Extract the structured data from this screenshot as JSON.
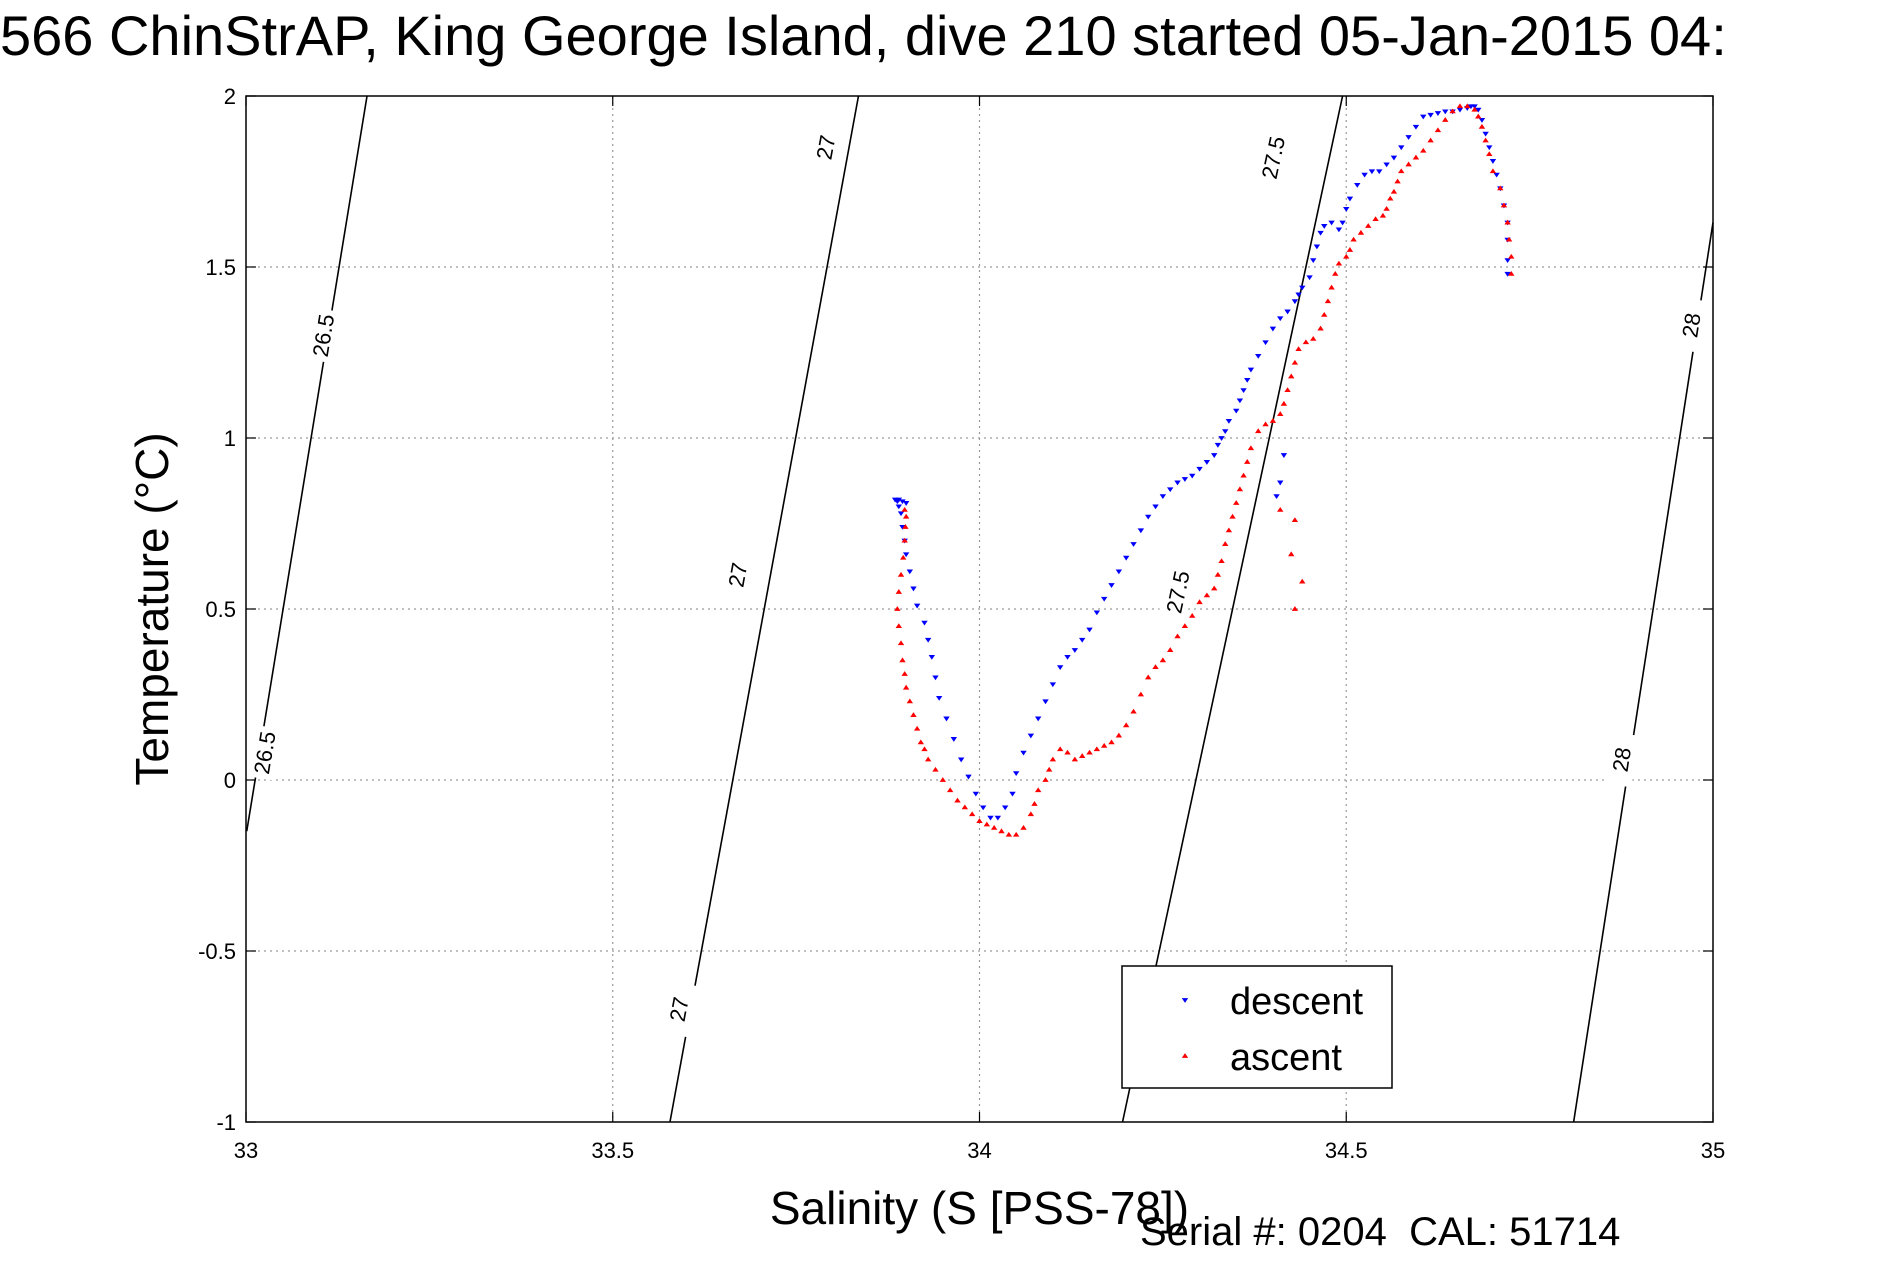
{
  "title": "566 ChinStrAP, King George Island, dive 210 started 05-Jan-2015 04:",
  "footer": "Serial #: 0204  CAL: 51714",
  "chart_data": {
    "type": "scatter",
    "title": "566 ChinStrAP, King George Island, dive 210 started 05-Jan-2015 04:",
    "xlabel": "Salinity (S [PSS-78])",
    "ylabel": "Temperature (°C)",
    "xlim": [
      33,
      35
    ],
    "ylim": [
      -1,
      2
    ],
    "xticks": [
      33,
      33.5,
      34,
      34.5,
      35
    ],
    "yticks": [
      -1,
      -0.5,
      0,
      0.5,
      1,
      1.5,
      2
    ],
    "xtick_labels": [
      "33",
      "33.5",
      "34",
      "34.5",
      "35"
    ],
    "ytick_labels": [
      "-1",
      "-0.5",
      "0",
      "0.5",
      "1",
      "1.5",
      "2"
    ],
    "grid": true,
    "legend_position": "bottom-right",
    "colors": {
      "descent": "#0000ff",
      "ascent": "#ff0000",
      "contour": "#000000",
      "grid": "#9a9a9a"
    },
    "density_contours": [
      {
        "label": "26.5",
        "points": [
          [
            33.001,
            -0.15
          ],
          [
            33.165,
            2.0
          ]
        ],
        "label_positions": [
          [
            33.025,
            0.08
          ],
          [
            33.105,
            1.3
          ]
        ]
      },
      {
        "label": "27",
        "points": [
          [
            33.578,
            -1.0
          ],
          [
            33.835,
            2.0
          ]
        ],
        "label_positions": [
          [
            33.59,
            -0.67
          ],
          [
            33.67,
            0.6
          ],
          [
            33.79,
            1.85
          ]
        ]
      },
      {
        "label": "27.5",
        "points": [
          [
            34.195,
            -1.0
          ],
          [
            34.495,
            2.0
          ]
        ],
        "label_positions": [
          [
            34.27,
            0.55
          ],
          [
            34.4,
            1.82
          ]
        ]
      },
      {
        "label": "28",
        "points": [
          [
            34.81,
            -1.0
          ],
          [
            35.0,
            1.63
          ]
        ],
        "label_positions": [
          [
            34.875,
            0.06
          ],
          [
            34.97,
            1.33
          ]
        ]
      }
    ],
    "series": [
      {
        "name": "descent",
        "marker": "triangle-down",
        "points": [
          [
            34.72,
            1.48
          ],
          [
            34.72,
            1.52
          ],
          [
            34.72,
            1.58
          ],
          [
            34.72,
            1.63
          ],
          [
            34.715,
            1.68
          ],
          [
            34.71,
            1.73
          ],
          [
            34.705,
            1.77
          ],
          [
            34.7,
            1.81
          ],
          [
            34.695,
            1.85
          ],
          [
            34.69,
            1.89
          ],
          [
            34.685,
            1.93
          ],
          [
            34.68,
            1.96
          ],
          [
            34.675,
            1.97
          ],
          [
            34.67,
            1.97
          ],
          [
            34.665,
            1.965
          ],
          [
            34.655,
            1.96
          ],
          [
            34.645,
            1.955
          ],
          [
            34.635,
            1.955
          ],
          [
            34.625,
            1.95
          ],
          [
            34.615,
            1.945
          ],
          [
            34.605,
            1.94
          ],
          [
            34.595,
            1.91
          ],
          [
            34.585,
            1.88
          ],
          [
            34.575,
            1.85
          ],
          [
            34.565,
            1.82
          ],
          [
            34.555,
            1.8
          ],
          [
            34.545,
            1.78
          ],
          [
            34.535,
            1.78
          ],
          [
            34.525,
            1.77
          ],
          [
            34.515,
            1.74
          ],
          [
            34.505,
            1.7
          ],
          [
            34.5,
            1.67
          ],
          [
            34.495,
            1.63
          ],
          [
            34.49,
            1.61
          ],
          [
            34.48,
            1.63
          ],
          [
            34.47,
            1.62
          ],
          [
            34.465,
            1.6
          ],
          [
            34.46,
            1.56
          ],
          [
            34.455,
            1.52
          ],
          [
            34.45,
            1.47
          ],
          [
            34.44,
            1.44
          ],
          [
            34.435,
            1.42
          ],
          [
            34.43,
            1.4
          ],
          [
            34.42,
            1.37
          ],
          [
            34.41,
            1.35
          ],
          [
            34.4,
            1.32
          ],
          [
            34.39,
            1.28
          ],
          [
            34.38,
            1.24
          ],
          [
            34.37,
            1.2
          ],
          [
            34.365,
            1.17
          ],
          [
            34.36,
            1.14
          ],
          [
            34.355,
            1.11
          ],
          [
            34.35,
            1.08
          ],
          [
            34.34,
            1.05
          ],
          [
            34.335,
            1.02
          ],
          [
            34.33,
            1.0
          ],
          [
            34.325,
            0.98
          ],
          [
            34.32,
            0.95
          ],
          [
            34.31,
            0.93
          ],
          [
            34.3,
            0.91
          ],
          [
            34.29,
            0.89
          ],
          [
            34.28,
            0.88
          ],
          [
            34.27,
            0.87
          ],
          [
            34.26,
            0.85
          ],
          [
            34.25,
            0.83
          ],
          [
            34.24,
            0.8
          ],
          [
            34.23,
            0.77
          ],
          [
            34.22,
            0.73
          ],
          [
            34.21,
            0.69
          ],
          [
            34.2,
            0.65
          ],
          [
            34.19,
            0.61
          ],
          [
            34.18,
            0.57
          ],
          [
            34.17,
            0.53
          ],
          [
            34.16,
            0.49
          ],
          [
            34.15,
            0.44
          ],
          [
            34.14,
            0.41
          ],
          [
            34.13,
            0.38
          ],
          [
            34.12,
            0.36
          ],
          [
            34.11,
            0.33
          ],
          [
            34.1,
            0.28
          ],
          [
            34.09,
            0.23
          ],
          [
            34.08,
            0.18
          ],
          [
            34.07,
            0.13
          ],
          [
            34.06,
            0.08
          ],
          [
            34.05,
            0.02
          ],
          [
            34.045,
            -0.04
          ],
          [
            34.035,
            -0.08
          ],
          [
            34.025,
            -0.11
          ],
          [
            34.015,
            -0.11
          ],
          [
            34.005,
            -0.08
          ],
          [
            33.995,
            -0.04
          ],
          [
            33.985,
            0.01
          ],
          [
            33.975,
            0.06
          ],
          [
            33.965,
            0.12
          ],
          [
            33.955,
            0.18
          ],
          [
            33.945,
            0.24
          ],
          [
            33.94,
            0.3
          ],
          [
            33.935,
            0.36
          ],
          [
            33.93,
            0.41
          ],
          [
            33.925,
            0.46
          ],
          [
            33.915,
            0.51
          ],
          [
            33.91,
            0.56
          ],
          [
            33.905,
            0.61
          ],
          [
            33.9,
            0.66
          ],
          [
            33.898,
            0.7
          ],
          [
            33.895,
            0.74
          ],
          [
            33.893,
            0.78
          ],
          [
            33.89,
            0.8
          ],
          [
            33.888,
            0.815
          ],
          [
            33.885,
            0.82
          ],
          [
            33.89,
            0.82
          ],
          [
            33.895,
            0.815
          ],
          [
            33.9,
            0.81
          ],
          [
            34.41,
            0.87
          ],
          [
            34.405,
            0.83
          ],
          [
            34.415,
            0.95
          ]
        ]
      },
      {
        "name": "ascent",
        "marker": "triangle-up",
        "points": [
          [
            34.725,
            1.48
          ],
          [
            34.725,
            1.53
          ],
          [
            34.722,
            1.58
          ],
          [
            34.72,
            1.63
          ],
          [
            34.715,
            1.68
          ],
          [
            34.71,
            1.73
          ],
          [
            34.7,
            1.78
          ],
          [
            34.695,
            1.83
          ],
          [
            34.69,
            1.87
          ],
          [
            34.685,
            1.91
          ],
          [
            34.68,
            1.94
          ],
          [
            34.675,
            1.96
          ],
          [
            34.665,
            1.97
          ],
          [
            34.655,
            1.97
          ],
          [
            34.645,
            1.955
          ],
          [
            34.635,
            1.93
          ],
          [
            34.625,
            1.9
          ],
          [
            34.615,
            1.87
          ],
          [
            34.605,
            1.84
          ],
          [
            34.595,
            1.82
          ],
          [
            34.585,
            1.8
          ],
          [
            34.575,
            1.78
          ],
          [
            34.57,
            1.75
          ],
          [
            34.565,
            1.72
          ],
          [
            34.56,
            1.7
          ],
          [
            34.555,
            1.67
          ],
          [
            34.55,
            1.65
          ],
          [
            34.54,
            1.64
          ],
          [
            34.53,
            1.62
          ],
          [
            34.52,
            1.6
          ],
          [
            34.51,
            1.58
          ],
          [
            34.505,
            1.55
          ],
          [
            34.5,
            1.53
          ],
          [
            34.49,
            1.51
          ],
          [
            34.485,
            1.48
          ],
          [
            34.48,
            1.44
          ],
          [
            34.475,
            1.4
          ],
          [
            34.47,
            1.36
          ],
          [
            34.465,
            1.32
          ],
          [
            34.455,
            1.29
          ],
          [
            34.445,
            1.28
          ],
          [
            34.435,
            1.26
          ],
          [
            34.43,
            1.22
          ],
          [
            34.425,
            1.18
          ],
          [
            34.42,
            1.14
          ],
          [
            34.415,
            1.1
          ],
          [
            34.41,
            1.07
          ],
          [
            34.4,
            1.05
          ],
          [
            34.39,
            1.04
          ],
          [
            34.38,
            1.02
          ],
          [
            34.37,
            0.97
          ],
          [
            34.365,
            0.93
          ],
          [
            34.36,
            0.89
          ],
          [
            34.355,
            0.85
          ],
          [
            34.35,
            0.81
          ],
          [
            34.345,
            0.77
          ],
          [
            34.34,
            0.73
          ],
          [
            34.335,
            0.69
          ],
          [
            34.33,
            0.64
          ],
          [
            34.325,
            0.6
          ],
          [
            34.32,
            0.56
          ],
          [
            34.31,
            0.54
          ],
          [
            34.3,
            0.52
          ],
          [
            34.29,
            0.48
          ],
          [
            34.28,
            0.45
          ],
          [
            34.27,
            0.42
          ],
          [
            34.26,
            0.38
          ],
          [
            34.25,
            0.35
          ],
          [
            34.24,
            0.33
          ],
          [
            34.23,
            0.3
          ],
          [
            34.22,
            0.25
          ],
          [
            34.21,
            0.2
          ],
          [
            34.2,
            0.16
          ],
          [
            34.19,
            0.13
          ],
          [
            34.18,
            0.11
          ],
          [
            34.17,
            0.1
          ],
          [
            34.16,
            0.09
          ],
          [
            34.15,
            0.08
          ],
          [
            34.14,
            0.07
          ],
          [
            34.13,
            0.06
          ],
          [
            34.12,
            0.08
          ],
          [
            34.11,
            0.09
          ],
          [
            34.1,
            0.06
          ],
          [
            34.095,
            0.03
          ],
          [
            34.09,
            0.0
          ],
          [
            34.08,
            -0.03
          ],
          [
            34.075,
            -0.07
          ],
          [
            34.07,
            -0.1
          ],
          [
            34.06,
            -0.14
          ],
          [
            34.05,
            -0.16
          ],
          [
            34.04,
            -0.16
          ],
          [
            34.03,
            -0.15
          ],
          [
            34.02,
            -0.14
          ],
          [
            34.01,
            -0.13
          ],
          [
            34.0,
            -0.12
          ],
          [
            33.99,
            -0.1
          ],
          [
            33.98,
            -0.08
          ],
          [
            33.97,
            -0.06
          ],
          [
            33.96,
            -0.03
          ],
          [
            33.95,
            0.0
          ],
          [
            33.94,
            0.03
          ],
          [
            33.93,
            0.06
          ],
          [
            33.925,
            0.09
          ],
          [
            33.92,
            0.11
          ],
          [
            33.915,
            0.15
          ],
          [
            33.91,
            0.19
          ],
          [
            33.905,
            0.23
          ],
          [
            33.9,
            0.27
          ],
          [
            33.898,
            0.31
          ],
          [
            33.895,
            0.35
          ],
          [
            33.893,
            0.4
          ],
          [
            33.89,
            0.45
          ],
          [
            33.888,
            0.5
          ],
          [
            33.89,
            0.55
          ],
          [
            33.893,
            0.6
          ],
          [
            33.896,
            0.65
          ],
          [
            33.898,
            0.7
          ],
          [
            33.899,
            0.74
          ],
          [
            33.9,
            0.77
          ],
          [
            33.898,
            0.79
          ],
          [
            34.43,
            0.76
          ],
          [
            34.425,
            0.66
          ],
          [
            34.43,
            0.5
          ],
          [
            34.41,
            0.79
          ],
          [
            34.44,
            0.58
          ]
        ]
      }
    ]
  }
}
